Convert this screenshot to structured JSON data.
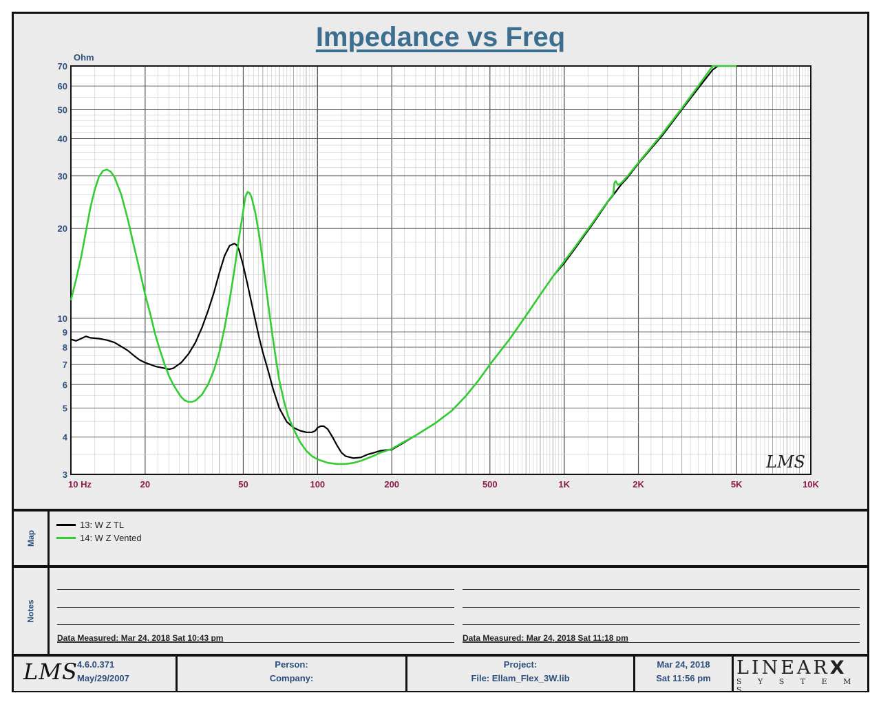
{
  "chart_data": {
    "type": "line",
    "title": "Impedance vs Freq",
    "ylabel": "Ohm",
    "x_scale": "log",
    "y_scale": "log",
    "xlim": [
      10,
      10000
    ],
    "ylim": [
      3,
      70
    ],
    "grid": true,
    "x_ticks": [
      {
        "value": 10,
        "label": "10  Hz"
      },
      {
        "value": 20,
        "label": "20"
      },
      {
        "value": 50,
        "label": "50"
      },
      {
        "value": 100,
        "label": "100"
      },
      {
        "value": 200,
        "label": "200"
      },
      {
        "value": 500,
        "label": "500"
      },
      {
        "value": 1000,
        "label": "1K"
      },
      {
        "value": 2000,
        "label": "2K"
      },
      {
        "value": 5000,
        "label": "5K"
      },
      {
        "value": 10000,
        "label": "10K"
      }
    ],
    "y_ticks": [
      {
        "value": 3,
        "label": "3"
      },
      {
        "value": 4,
        "label": "4"
      },
      {
        "value": 5,
        "label": "5"
      },
      {
        "value": 6,
        "label": "6"
      },
      {
        "value": 7,
        "label": "7"
      },
      {
        "value": 8,
        "label": "8"
      },
      {
        "value": 9,
        "label": "9"
      },
      {
        "value": 10,
        "label": "10"
      },
      {
        "value": 20,
        "label": "20"
      },
      {
        "value": 30,
        "label": "30"
      },
      {
        "value": 40,
        "label": "40"
      },
      {
        "value": 50,
        "label": "50"
      },
      {
        "value": 60,
        "label": "60"
      },
      {
        "value": 70,
        "label": "70"
      }
    ],
    "series": [
      {
        "name": "13: W Z TL",
        "color": "#000000",
        "points": [
          [
            10,
            8.5
          ],
          [
            10.5,
            8.4
          ],
          [
            11,
            8.55
          ],
          [
            11.5,
            8.7
          ],
          [
            12,
            8.6
          ],
          [
            13,
            8.55
          ],
          [
            14,
            8.45
          ],
          [
            15,
            8.3
          ],
          [
            16,
            8.05
          ],
          [
            17,
            7.8
          ],
          [
            18,
            7.5
          ],
          [
            19,
            7.25
          ],
          [
            20,
            7.1
          ],
          [
            21,
            7.0
          ],
          [
            22,
            6.9
          ],
          [
            23,
            6.85
          ],
          [
            24,
            6.8
          ],
          [
            25,
            6.75
          ],
          [
            26,
            6.8
          ],
          [
            28,
            7.1
          ],
          [
            30,
            7.6
          ],
          [
            32,
            8.3
          ],
          [
            34,
            9.3
          ],
          [
            36,
            10.6
          ],
          [
            38,
            12.2
          ],
          [
            40,
            14.2
          ],
          [
            42,
            16.2
          ],
          [
            44,
            17.5
          ],
          [
            46,
            17.8
          ],
          [
            47,
            17.6
          ],
          [
            48,
            17.0
          ],
          [
            50,
            15.0
          ],
          [
            52,
            13.0
          ],
          [
            55,
            10.5
          ],
          [
            58,
            8.6
          ],
          [
            60,
            7.7
          ],
          [
            63,
            6.7
          ],
          [
            66,
            5.8
          ],
          [
            70,
            5.0
          ],
          [
            75,
            4.5
          ],
          [
            80,
            4.3
          ],
          [
            85,
            4.2
          ],
          [
            90,
            4.15
          ],
          [
            95,
            4.15
          ],
          [
            98,
            4.2
          ],
          [
            100,
            4.3
          ],
          [
            103,
            4.35
          ],
          [
            106,
            4.35
          ],
          [
            110,
            4.25
          ],
          [
            115,
            4.0
          ],
          [
            120,
            3.75
          ],
          [
            125,
            3.55
          ],
          [
            130,
            3.45
          ],
          [
            140,
            3.4
          ],
          [
            150,
            3.42
          ],
          [
            160,
            3.5
          ],
          [
            170,
            3.55
          ],
          [
            180,
            3.6
          ],
          [
            190,
            3.62
          ],
          [
            200,
            3.63
          ],
          [
            220,
            3.8
          ],
          [
            250,
            4.05
          ],
          [
            300,
            4.45
          ],
          [
            350,
            4.9
          ],
          [
            400,
            5.5
          ],
          [
            450,
            6.2
          ],
          [
            500,
            7.0
          ],
          [
            600,
            8.5
          ],
          [
            700,
            10.2
          ],
          [
            800,
            12.0
          ],
          [
            900,
            13.8
          ],
          [
            1000,
            15.3
          ],
          [
            1100,
            17.0
          ],
          [
            1200,
            18.8
          ],
          [
            1300,
            20.6
          ],
          [
            1400,
            22.5
          ],
          [
            1500,
            24.5
          ],
          [
            1600,
            26.2
          ],
          [
            1700,
            28.0
          ],
          [
            1800,
            29.5
          ],
          [
            2000,
            33.0
          ],
          [
            2500,
            41.0
          ],
          [
            3000,
            50.0
          ],
          [
            3500,
            59.0
          ],
          [
            4000,
            68.0
          ],
          [
            4200,
            70.0
          ]
        ]
      },
      {
        "name": "14: W Z Vented",
        "color": "#33cc33",
        "points": [
          [
            10,
            11.5
          ],
          [
            10.5,
            13.5
          ],
          [
            11,
            16.0
          ],
          [
            11.5,
            19.5
          ],
          [
            12,
            23.5
          ],
          [
            12.5,
            27.0
          ],
          [
            13,
            29.8
          ],
          [
            13.5,
            31.2
          ],
          [
            14,
            31.5
          ],
          [
            14.5,
            31.0
          ],
          [
            15,
            29.8
          ],
          [
            16,
            26.0
          ],
          [
            17,
            21.5
          ],
          [
            18,
            17.5
          ],
          [
            19,
            14.5
          ],
          [
            20,
            12.0
          ],
          [
            21,
            10.3
          ],
          [
            22,
            8.8
          ],
          [
            23,
            7.8
          ],
          [
            24,
            7.0
          ],
          [
            25,
            6.4
          ],
          [
            26,
            6.0
          ],
          [
            27,
            5.7
          ],
          [
            28,
            5.45
          ],
          [
            29,
            5.3
          ],
          [
            30,
            5.25
          ],
          [
            31,
            5.25
          ],
          [
            32,
            5.3
          ],
          [
            34,
            5.55
          ],
          [
            36,
            6.0
          ],
          [
            38,
            6.7
          ],
          [
            40,
            7.7
          ],
          [
            42,
            9.3
          ],
          [
            44,
            11.5
          ],
          [
            46,
            14.5
          ],
          [
            48,
            18.5
          ],
          [
            50,
            23.0
          ],
          [
            51,
            25.5
          ],
          [
            52,
            26.5
          ],
          [
            53,
            26.3
          ],
          [
            54,
            25.5
          ],
          [
            56,
            22.5
          ],
          [
            58,
            19.0
          ],
          [
            60,
            15.5
          ],
          [
            62,
            12.5
          ],
          [
            64,
            10.2
          ],
          [
            66,
            8.5
          ],
          [
            68,
            7.2
          ],
          [
            70,
            6.2
          ],
          [
            73,
            5.3
          ],
          [
            76,
            4.7
          ],
          [
            80,
            4.25
          ],
          [
            85,
            3.85
          ],
          [
            90,
            3.6
          ],
          [
            95,
            3.45
          ],
          [
            100,
            3.37
          ],
          [
            110,
            3.28
          ],
          [
            120,
            3.25
          ],
          [
            130,
            3.25
          ],
          [
            140,
            3.28
          ],
          [
            150,
            3.33
          ],
          [
            160,
            3.4
          ],
          [
            170,
            3.47
          ],
          [
            180,
            3.55
          ],
          [
            200,
            3.65
          ],
          [
            220,
            3.82
          ],
          [
            250,
            4.05
          ],
          [
            300,
            4.45
          ],
          [
            350,
            4.9
          ],
          [
            400,
            5.5
          ],
          [
            450,
            6.2
          ],
          [
            500,
            7.0
          ],
          [
            600,
            8.5
          ],
          [
            700,
            10.2
          ],
          [
            800,
            12.0
          ],
          [
            900,
            13.8
          ],
          [
            1000,
            15.5
          ],
          [
            1100,
            17.2
          ],
          [
            1200,
            19.0
          ],
          [
            1300,
            20.8
          ],
          [
            1400,
            22.7
          ],
          [
            1500,
            24.6
          ],
          [
            1550,
            25.5
          ],
          [
            1580,
            26.0
          ],
          [
            1600,
            28.5
          ],
          [
            1620,
            28.8
          ],
          [
            1650,
            28.0
          ],
          [
            1700,
            28.3
          ],
          [
            1800,
            29.8
          ],
          [
            2000,
            33.2
          ],
          [
            2500,
            41.5
          ],
          [
            3000,
            50.5
          ],
          [
            3500,
            60.0
          ],
          [
            4000,
            70.0
          ],
          [
            5000,
            70.0
          ]
        ]
      }
    ]
  },
  "legend_header": "Map",
  "notes_header": "Notes",
  "notes": {
    "left_measured": "Data Measured: Mar 24, 2018  Sat 10:43 pm",
    "right_measured": "Data Measured: Mar 24, 2018  Sat 11:18 pm"
  },
  "footer": {
    "logo_text": "LMS",
    "version": "4.6.0.371",
    "version_date": "May/29/2007",
    "person_label": "Person:",
    "company_label": "Company:",
    "project_label": "Project:",
    "file_label": "File: Ellam_Flex_3W.lib",
    "date": "Mar 24, 2018",
    "time": "Sat 11:56 pm",
    "brand_top": "LINEAR",
    "brand_x": "X",
    "brand_bottom": "S Y S T E M S"
  },
  "chart_watermark": "LMS"
}
